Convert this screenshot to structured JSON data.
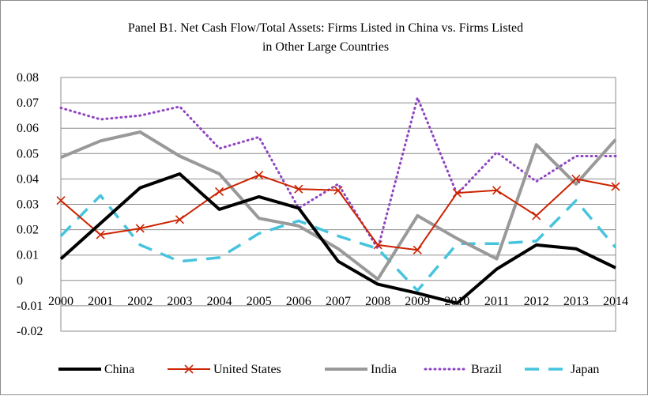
{
  "chart_data": {
    "type": "line",
    "title_lines": [
      "Panel B1. Net Cash Flow/Total Assets: Firms Listed in China vs. Firms Listed",
      "in Other Large Countries"
    ],
    "x": [
      "2000",
      "2001",
      "2002",
      "2003",
      "2004",
      "2005",
      "2006",
      "2007",
      "2008",
      "2009",
      "2010",
      "2011",
      "2012",
      "2013",
      "2014"
    ],
    "y_ticks": [
      "0.08",
      "0.07",
      "0.06",
      "0.05",
      "0.04",
      "0.03",
      "0.02",
      "0.01",
      "0",
      "-0.01",
      "-0.02"
    ],
    "ylim": [
      -0.02,
      0.08
    ],
    "grid": true,
    "legend_position": "bottom",
    "series": [
      {
        "name": "China",
        "color": "#000000",
        "style": "solid-thick",
        "values": [
          0.0085,
          0.0225,
          0.0365,
          0.042,
          0.028,
          0.033,
          0.0285,
          0.0075,
          -0.0015,
          -0.005,
          -0.009,
          0.0045,
          0.014,
          0.0125,
          0.005
        ]
      },
      {
        "name": "United States",
        "color": "#cc2200",
        "style": "solid-cross",
        "values": [
          0.0315,
          0.018,
          0.0205,
          0.024,
          0.035,
          0.0415,
          0.036,
          0.0355,
          0.014,
          0.012,
          0.0345,
          0.0355,
          0.0255,
          0.04,
          0.037
        ]
      },
      {
        "name": "India",
        "color": "#999999",
        "style": "solid-thick",
        "values": [
          0.0485,
          0.055,
          0.0585,
          0.049,
          0.042,
          0.0245,
          0.0215,
          0.0125,
          0.0005,
          0.0255,
          0.0165,
          0.0085,
          0.0535,
          0.038,
          0.0555
        ]
      },
      {
        "name": "Brazil",
        "color": "#8e44c2",
        "style": "dotted",
        "values": [
          0.068,
          0.0635,
          0.065,
          0.0685,
          0.052,
          0.0565,
          0.0285,
          0.038,
          0.0125,
          0.072,
          0.034,
          0.0505,
          0.039,
          0.049,
          0.049
        ]
      },
      {
        "name": "Japan",
        "color": "#47c4dd",
        "style": "dashed",
        "values": [
          0.0175,
          0.0335,
          0.014,
          0.0075,
          0.009,
          0.0185,
          0.0235,
          0.0175,
          0.0125,
          -0.004,
          0.0145,
          0.0145,
          0.0155,
          0.0315,
          0.013
        ]
      }
    ]
  }
}
